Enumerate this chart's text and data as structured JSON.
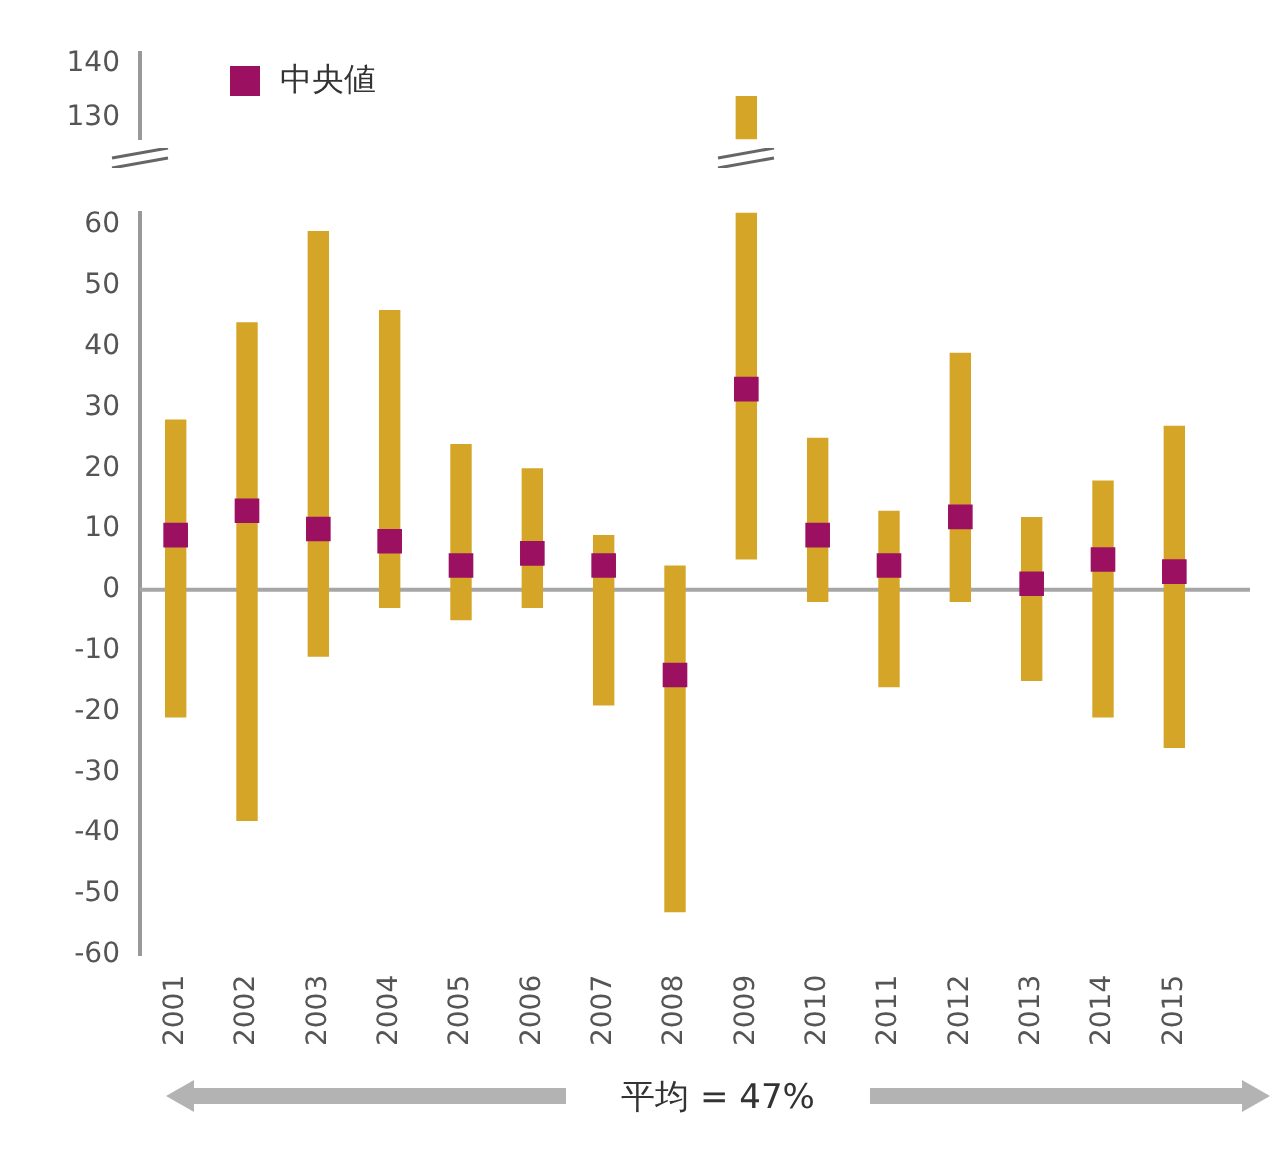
{
  "chart_data": [
    {
      "type": "bar",
      "categories": [
        "2001",
        "2002",
        "2003",
        "2004",
        "2005",
        "2006",
        "2007",
        "2008",
        "2009",
        "2010",
        "2011",
        "2012",
        "2013",
        "2014",
        "2015"
      ],
      "ylim": [
        126,
        142
      ],
      "yticks": [
        130,
        140
      ],
      "grid": false,
      "tick_labels": "y",
      "series": [
        {
          "type": "bar",
          "color": "#d4a526",
          "base": [
            null,
            null,
            null,
            null,
            null,
            null,
            null,
            null,
            5,
            null,
            null,
            null,
            null,
            null,
            null
          ],
          "values": [
            null,
            null,
            null,
            null,
            null,
            null,
            null,
            null,
            129,
            null,
            null,
            null,
            null,
            null,
            null
          ]
        }
      ]
    },
    {
      "type": "bar",
      "categories": [
        "2001",
        "2002",
        "2003",
        "2004",
        "2005",
        "2006",
        "2007",
        "2008",
        "2009",
        "2010",
        "2011",
        "2012",
        "2013",
        "2014",
        "2015"
      ],
      "ylim": [
        -60,
        62
      ],
      "yticks": [
        -60,
        -50,
        -40,
        -30,
        -20,
        -10,
        0,
        10,
        20,
        30,
        40,
        50,
        60
      ],
      "grid": false,
      "legend": "top left",
      "ref_lines": [
        {
          "axis": "y",
          "value": 0,
          "color": "#a6a6a6"
        }
      ],
      "annotations": [
        "平均 = 47%"
      ],
      "series": [
        {
          "type": "bar",
          "color": "#d4a526",
          "base": [
            -21,
            -38,
            -11,
            -3,
            -5,
            -3,
            -19,
            -53,
            5,
            -2,
            -16,
            -2,
            -15,
            -21,
            -26
          ],
          "values": [
            49,
            82,
            70,
            49,
            29,
            23,
            28,
            57,
            129,
            27,
            29,
            41,
            27,
            39,
            53
          ]
        },
        {
          "type": "scatter",
          "name": "中央値",
          "color": "#9b1060",
          "marker": "square",
          "values": [
            9,
            13,
            10,
            8,
            4,
            6,
            4,
            -14,
            33,
            9,
            4,
            12,
            1,
            5,
            3
          ]
        }
      ]
    }
  ]
}
